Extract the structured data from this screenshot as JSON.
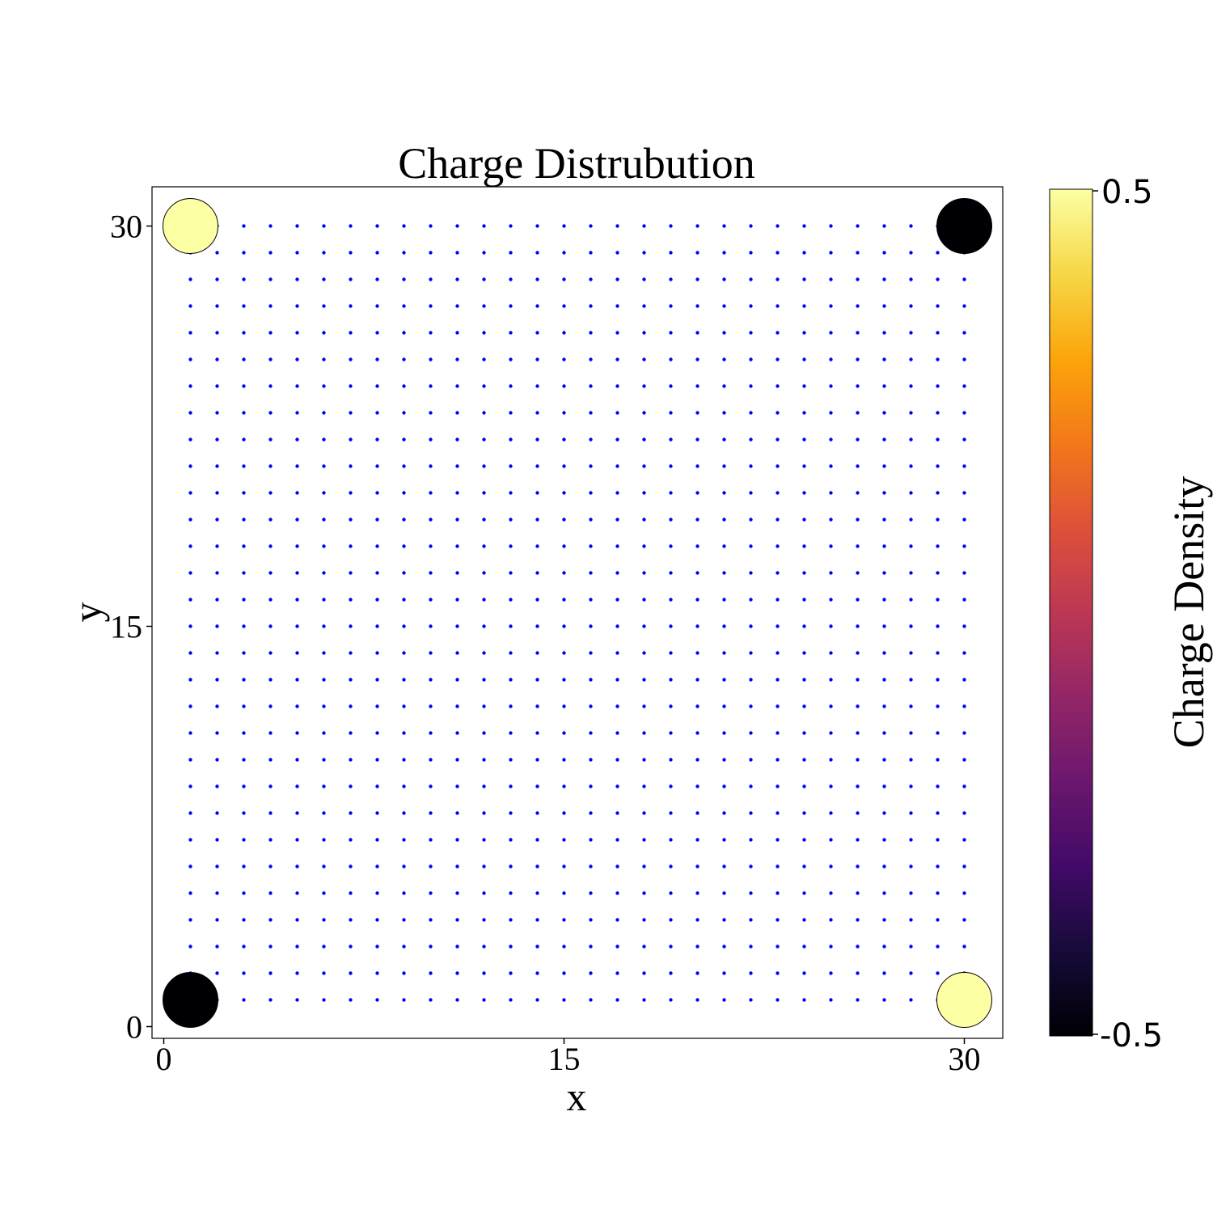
{
  "chart_data": {
    "type": "scatter",
    "title": "Charge Distrubution",
    "xlabel": "x",
    "ylabel": "y",
    "xlim": [
      -0.5,
      31.5
    ],
    "ylim": [
      -0.5,
      31.5
    ],
    "xticks": [
      0,
      15,
      30
    ],
    "yticks": [
      0,
      15,
      30
    ],
    "grid": false,
    "grid_points": {
      "color": "#0000ff",
      "x_range": [
        1,
        30
      ],
      "y_range": [
        1,
        30
      ],
      "step": 1
    },
    "charges": [
      {
        "x": 1,
        "y": 30,
        "value": 0.5
      },
      {
        "x": 30,
        "y": 30,
        "value": -0.5
      },
      {
        "x": 1,
        "y": 1,
        "value": -0.5
      },
      {
        "x": 30,
        "y": 1,
        "value": 0.5
      }
    ],
    "colorbar": {
      "label": "Charge Density",
      "colormap": "inferno",
      "min": -0.5,
      "max": 0.5,
      "min_label": "-0.5",
      "max_label": "0.5"
    }
  }
}
